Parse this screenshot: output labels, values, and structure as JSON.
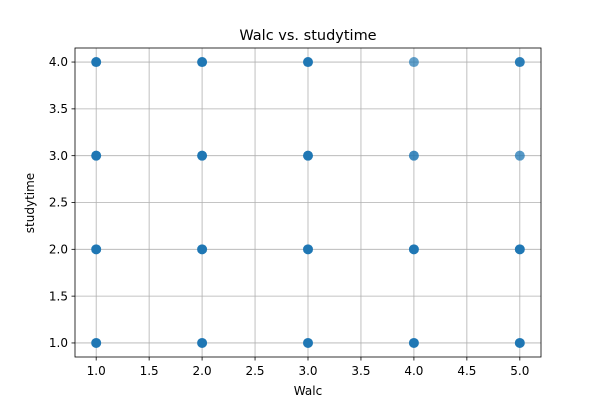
{
  "chart_data": {
    "type": "scatter",
    "title": "Walc vs. studytime",
    "xlabel": "Walc",
    "ylabel": "studytime",
    "xlim": [
      0.8,
      5.2
    ],
    "ylim": [
      0.85,
      4.15
    ],
    "xticks": [
      1.0,
      1.5,
      2.0,
      2.5,
      3.0,
      3.5,
      4.0,
      4.5,
      5.0
    ],
    "xtick_labels": [
      "1.0",
      "1.5",
      "2.0",
      "2.5",
      "3.0",
      "3.5",
      "4.0",
      "4.5",
      "5.0"
    ],
    "yticks": [
      1.0,
      1.5,
      2.0,
      2.5,
      3.0,
      3.5,
      4.0
    ],
    "ytick_labels": [
      "1.0",
      "1.5",
      "2.0",
      "2.5",
      "3.0",
      "3.5",
      "4.0"
    ],
    "grid": true,
    "marker_color": "#1f77b4",
    "points": [
      {
        "x": 1,
        "y": 1,
        "opacity": 1.0
      },
      {
        "x": 1,
        "y": 2,
        "opacity": 1.0
      },
      {
        "x": 1,
        "y": 3,
        "opacity": 1.0
      },
      {
        "x": 1,
        "y": 4,
        "opacity": 1.0
      },
      {
        "x": 2,
        "y": 1,
        "opacity": 1.0
      },
      {
        "x": 2,
        "y": 2,
        "opacity": 1.0
      },
      {
        "x": 2,
        "y": 3,
        "opacity": 1.0
      },
      {
        "x": 2,
        "y": 4,
        "opacity": 1.0
      },
      {
        "x": 3,
        "y": 1,
        "opacity": 1.0
      },
      {
        "x": 3,
        "y": 2,
        "opacity": 1.0
      },
      {
        "x": 3,
        "y": 3,
        "opacity": 1.0
      },
      {
        "x": 3,
        "y": 4,
        "opacity": 1.0
      },
      {
        "x": 4,
        "y": 1,
        "opacity": 1.0
      },
      {
        "x": 4,
        "y": 2,
        "opacity": 1.0
      },
      {
        "x": 4,
        "y": 3,
        "opacity": 0.85
      },
      {
        "x": 4,
        "y": 4,
        "opacity": 0.7
      },
      {
        "x": 5,
        "y": 1,
        "opacity": 1.0
      },
      {
        "x": 5,
        "y": 2,
        "opacity": 1.0
      },
      {
        "x": 5,
        "y": 3,
        "opacity": 0.75
      },
      {
        "x": 5,
        "y": 4,
        "opacity": 0.95
      }
    ]
  }
}
